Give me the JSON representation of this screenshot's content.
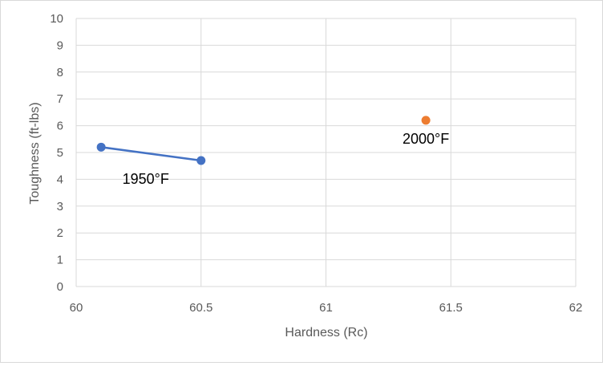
{
  "chart_data": {
    "type": "scatter",
    "title": "",
    "xlabel": "Hardness (Rc)",
    "ylabel": "Toughness (ft-lbs)",
    "xlim": [
      60,
      62
    ],
    "ylim": [
      0,
      10
    ],
    "x_ticks": [
      "60",
      "60.5",
      "61",
      "61.5",
      "62"
    ],
    "y_ticks": [
      "0",
      "1",
      "2",
      "3",
      "4",
      "5",
      "6",
      "7",
      "8",
      "9",
      "10"
    ],
    "grid": true,
    "legend": "none",
    "series": [
      {
        "label": "1950°F",
        "color": "#4472c4",
        "connected": true,
        "points": [
          {
            "x": 60.1,
            "y": 5.2
          },
          {
            "x": 60.5,
            "y": 4.7
          }
        ]
      },
      {
        "label": "2000°F",
        "color": "#ed7d31",
        "connected": false,
        "points": [
          {
            "x": 61.4,
            "y": 6.2
          }
        ]
      }
    ]
  }
}
